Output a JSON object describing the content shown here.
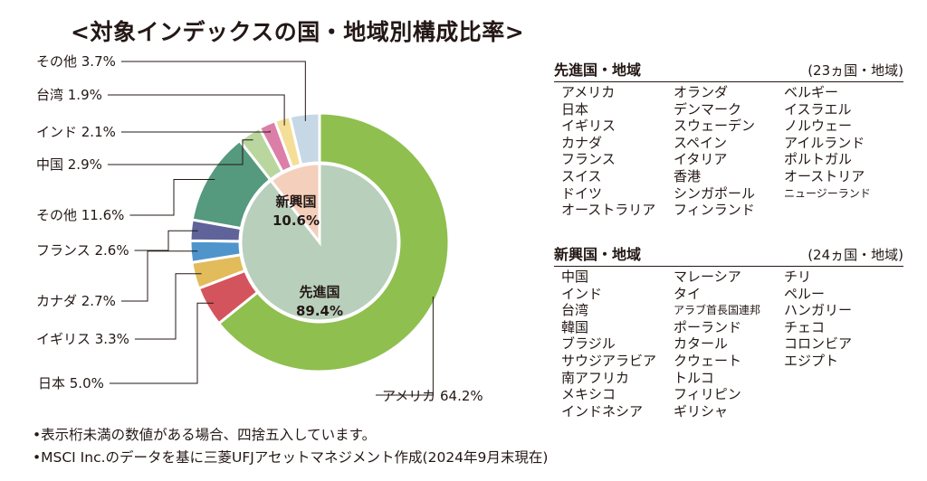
{
  "title": "<対象インデックスの国・地域別構成比率>",
  "chart_data": {
    "type": "pie",
    "outer_ring": [
      {
        "label": "アメリカ",
        "value": 64.2,
        "color": "#8fbf4f"
      },
      {
        "label": "日本",
        "value": 5.0,
        "color": "#d4545d"
      },
      {
        "label": "イギリス",
        "value": 3.3,
        "color": "#e2bb5b"
      },
      {
        "label": "カナダ",
        "value": 2.7,
        "color": "#4f95cc"
      },
      {
        "label": "フランス",
        "value": 2.6,
        "color": "#60639a"
      },
      {
        "label": "その他",
        "value": 11.6,
        "color": "#55997f"
      },
      {
        "label": "中国",
        "value": 2.9,
        "color": "#b9d69f"
      },
      {
        "label": "インド",
        "value": 2.1,
        "color": "#dc7fa8"
      },
      {
        "label": "台湾",
        "value": 1.9,
        "color": "#f5de97"
      },
      {
        "label": "その他",
        "value": 3.7,
        "color": "#c6d8e6"
      }
    ],
    "inner_pie": [
      {
        "label": "先進国",
        "value": 89.4,
        "color": "#b8cfbc"
      },
      {
        "label": "新興国",
        "value": 10.6,
        "color": "#f4cfbb"
      }
    ],
    "callouts": [
      "アメリカ 64.2%",
      "日本 5.0%",
      "イギリス 3.3%",
      "カナダ 2.7%",
      "フランス 2.6%",
      "その他 11.6%",
      "中国 2.9%",
      "インド 2.1%",
      "台湾 1.9%",
      "その他 3.7%"
    ],
    "inner_labels": [
      {
        "name": "先進国",
        "value": "89.4%"
      },
      {
        "name": "新興国",
        "value": "10.6%"
      }
    ]
  },
  "developed": {
    "heading": "先進国・地域",
    "count": "(23ヵ国・地域)",
    "col1": [
      "アメリカ",
      "日本",
      "イギリス",
      "カナダ",
      "フランス",
      "スイス",
      "ドイツ",
      "オーストラリア"
    ],
    "col2": [
      "オランダ",
      "デンマーク",
      "スウェーデン",
      "スペイン",
      "イタリア",
      "香港",
      "シンガポール",
      "フィンランド"
    ],
    "col3": [
      "ベルギー",
      "イスラエル",
      "ノルウェー",
      "アイルランド",
      "ポルトガル",
      "オーストリア",
      "ニュージーランド"
    ]
  },
  "emerging": {
    "heading": "新興国・地域",
    "count": "(24ヵ国・地域)",
    "col1": [
      "中国",
      "インド",
      "台湾",
      "韓国",
      "ブラジル",
      "サウジアラビア",
      "南アフリカ",
      "メキシコ",
      "インドネシア"
    ],
    "col2": [
      "マレーシア",
      "タイ",
      "アラブ首長国連邦",
      "ポーランド",
      "カタール",
      "クウェート",
      "トルコ",
      "フィリピン",
      "ギリシャ"
    ],
    "col3": [
      "チリ",
      "ペルー",
      "ハンガリー",
      "チェコ",
      "コロンビア",
      "エジプト"
    ]
  },
  "notes": [
    "•表示桁未満の数値がある場合、四捨五入しています。",
    "•MSCI Inc.のデータを基に三菱UFJアセットマネジメント作成(2024年9月末現在)"
  ]
}
